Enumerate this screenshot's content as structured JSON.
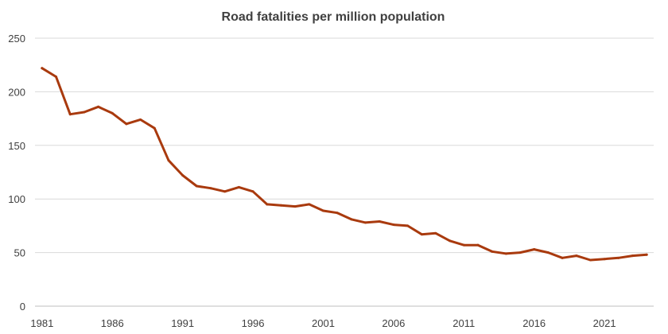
{
  "chart_data": {
    "type": "line",
    "title": "Road fatalities per million population",
    "xlabel": "",
    "ylabel": "",
    "ylim": [
      0,
      250
    ],
    "y_ticks": [
      "0",
      "50",
      "100",
      "150",
      "200",
      "250"
    ],
    "x_tick_labels": [
      "1981",
      "1986",
      "1991",
      "1996",
      "2001",
      "2006",
      "2011",
      "2016",
      "2021"
    ],
    "grid": "horizontal",
    "legend": "none",
    "x": [
      1981,
      1982,
      1983,
      1984,
      1985,
      1986,
      1987,
      1988,
      1989,
      1990,
      1991,
      1992,
      1993,
      1994,
      1995,
      1996,
      1997,
      1998,
      1999,
      2000,
      2001,
      2002,
      2003,
      2004,
      2005,
      2006,
      2007,
      2008,
      2009,
      2010,
      2011,
      2012,
      2013,
      2014,
      2015,
      2016,
      2017,
      2018,
      2019,
      2020,
      2021,
      2022,
      2023,
      2024
    ],
    "series": [
      {
        "color": "#a93a0e",
        "values": [
          222,
          214,
          179,
          181,
          186,
          180,
          170,
          174,
          166,
          136,
          122,
          112,
          110,
          107,
          111,
          107,
          95,
          94,
          93,
          95,
          89,
          87,
          81,
          78,
          79,
          76,
          75,
          67,
          68,
          61,
          57,
          57,
          51,
          49,
          50,
          53,
          50,
          45,
          47,
          43,
          44,
          45,
          47,
          48
        ]
      }
    ]
  }
}
